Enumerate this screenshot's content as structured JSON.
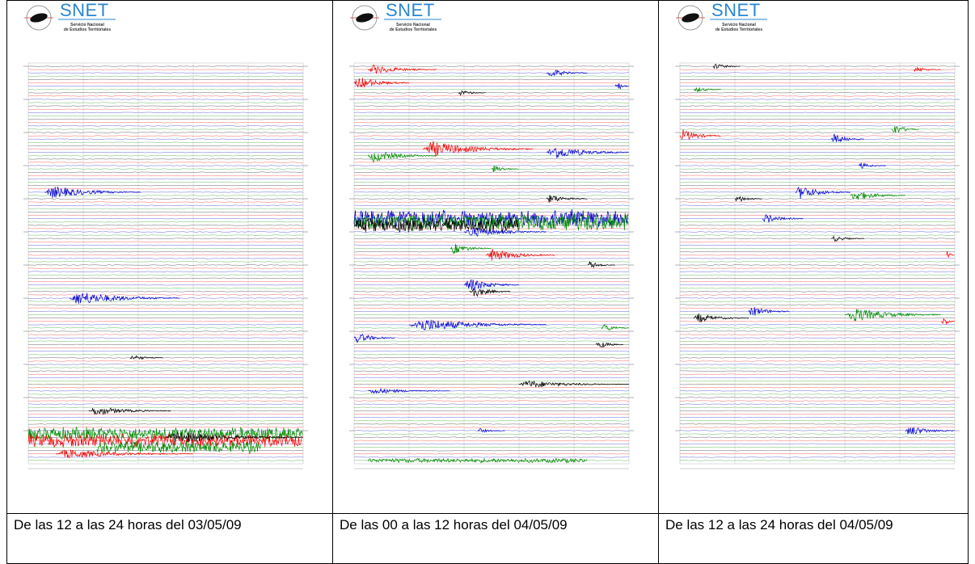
{
  "panels": [
    {
      "logo_title": "SNET",
      "logo_subtitle": [
        "Servicio Nacional",
        "de Estudios Territoriales"
      ],
      "caption": "De las 12 a las 24 horas del 03/05/09"
    },
    {
      "logo_title": "SNET",
      "logo_subtitle": [
        "Servicio Nacional",
        "de Estudios Territoriales"
      ],
      "caption": "De las 00 a las 12 horas del 04/05/09"
    },
    {
      "logo_title": "SNET",
      "logo_subtitle": [
        "Servicio Nacional",
        "de Estudios Territoriales"
      ],
      "caption": "De las 12 a las 24 horas del 04/05/09"
    }
  ]
}
